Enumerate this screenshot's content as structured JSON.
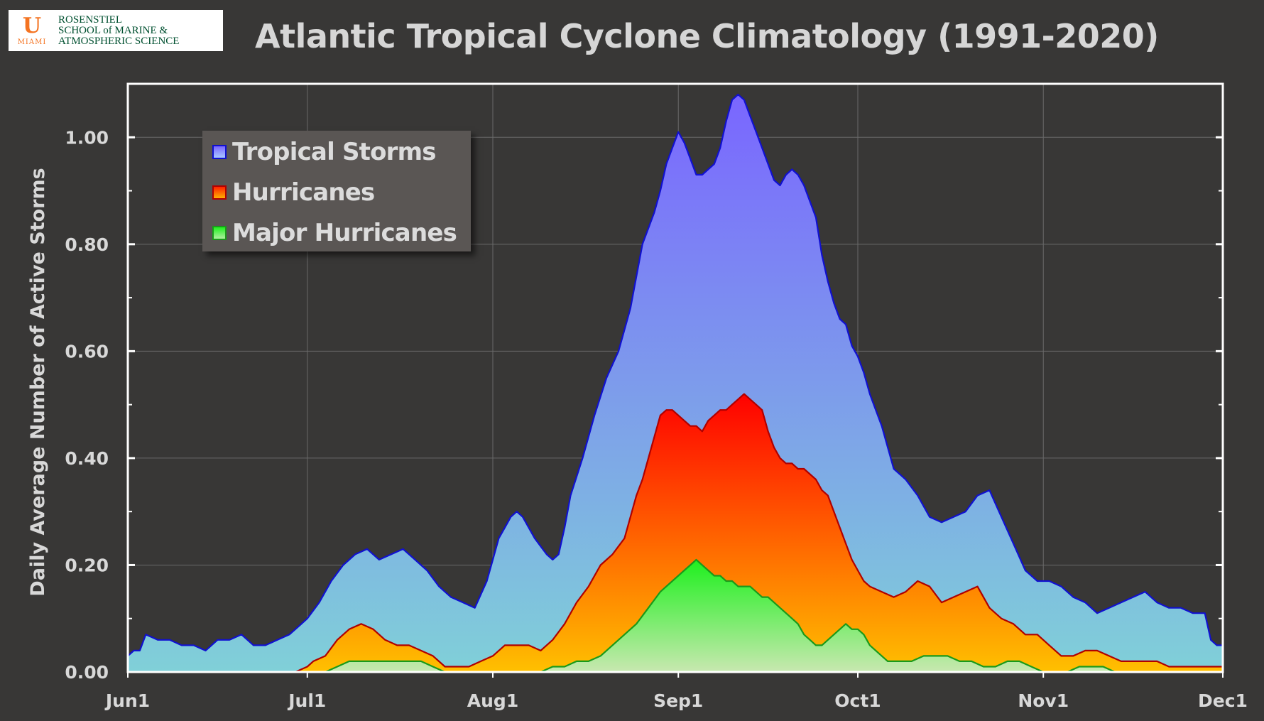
{
  "logo": {
    "mark": "U",
    "city": "MIAMI",
    "lines": [
      "ROSENSTIEL",
      "SCHOOL of MARINE &",
      "ATMOSPHERIC SCIENCE"
    ]
  },
  "title": "Atlantic Tropical Cyclone Climatology (1991-2020)",
  "colors": {
    "background": "#383736",
    "tropical_storms_top": "#7a66ff",
    "tropical_storms_bottom": "#80d0d8",
    "hurricanes_top": "#ff0000",
    "hurricanes_bottom": "#ffc000",
    "major_top": "#1ef01e",
    "major_bottom": "#c8e8b0",
    "ts_line": "#1010d0",
    "hu_line": "#b00000",
    "mh_line": "#1a9a1a",
    "axes": "#ffffff"
  },
  "chart_data": {
    "type": "area",
    "title": "Atlantic Tropical Cyclone Climatology (1991-2020)",
    "xlabel": "",
    "ylabel": "Daily Average Number of Active Storms",
    "ylim": [
      0,
      1.1
    ],
    "yticks": [
      "0.00",
      "0.20",
      "0.40",
      "0.60",
      "0.80",
      "1.00"
    ],
    "xticks": [
      "Jun1",
      "Jul1",
      "Aug1",
      "Sep1",
      "Oct1",
      "Nov1",
      "Dec1"
    ],
    "xtick_days": [
      0,
      30,
      61,
      92,
      122,
      153,
      183
    ],
    "xlim": [
      0,
      183
    ],
    "grid": true,
    "legend_position": "top-left",
    "series": [
      {
        "name": "Tropical Storms",
        "x": [
          0,
          1,
          2,
          3,
          5,
          7,
          9,
          11,
          13,
          15,
          17,
          19,
          21,
          23,
          25,
          27,
          29,
          30,
          32,
          34,
          36,
          38,
          40,
          42,
          44,
          46,
          48,
          50,
          52,
          54,
          56,
          58,
          60,
          61,
          62,
          63,
          64,
          65,
          66,
          68,
          70,
          71,
          72,
          73,
          74,
          76,
          78,
          80,
          82,
          84,
          86,
          88,
          89,
          90,
          91,
          92,
          93,
          94,
          95,
          96,
          97,
          98,
          99,
          100,
          101,
          102,
          103,
          104,
          105,
          106,
          107,
          108,
          109,
          110,
          111,
          112,
          113,
          114,
          115,
          116,
          117,
          118,
          119,
          120,
          121,
          122,
          123,
          124,
          126,
          128,
          130,
          132,
          134,
          136,
          138,
          140,
          142,
          144,
          146,
          148,
          150,
          152,
          154,
          156,
          158,
          160,
          162,
          164,
          166,
          168,
          170,
          172,
          174,
          176,
          178,
          180,
          181,
          182,
          183
        ],
        "values": [
          0.03,
          0.04,
          0.04,
          0.07,
          0.06,
          0.06,
          0.05,
          0.05,
          0.04,
          0.06,
          0.06,
          0.07,
          0.05,
          0.05,
          0.06,
          0.07,
          0.09,
          0.1,
          0.13,
          0.17,
          0.2,
          0.22,
          0.23,
          0.21,
          0.22,
          0.23,
          0.21,
          0.19,
          0.16,
          0.14,
          0.13,
          0.12,
          0.17,
          0.21,
          0.25,
          0.27,
          0.29,
          0.3,
          0.29,
          0.25,
          0.22,
          0.21,
          0.22,
          0.27,
          0.33,
          0.4,
          0.48,
          0.55,
          0.6,
          0.68,
          0.8,
          0.86,
          0.9,
          0.95,
          0.98,
          1.01,
          0.99,
          0.96,
          0.93,
          0.93,
          0.94,
          0.95,
          0.98,
          1.03,
          1.07,
          1.08,
          1.07,
          1.04,
          1.01,
          0.98,
          0.95,
          0.92,
          0.91,
          0.93,
          0.94,
          0.93,
          0.91,
          0.88,
          0.85,
          0.78,
          0.73,
          0.69,
          0.66,
          0.65,
          0.61,
          0.59,
          0.56,
          0.52,
          0.46,
          0.38,
          0.36,
          0.33,
          0.29,
          0.28,
          0.29,
          0.3,
          0.33,
          0.34,
          0.29,
          0.24,
          0.19,
          0.17,
          0.17,
          0.16,
          0.14,
          0.13,
          0.11,
          0.12,
          0.13,
          0.14,
          0.15,
          0.13,
          0.12,
          0.12,
          0.11,
          0.11,
          0.06,
          0.05,
          0.05
        ]
      },
      {
        "name": "Hurricanes",
        "x": [
          0,
          26,
          28,
          30,
          31,
          33,
          35,
          37,
          39,
          41,
          43,
          45,
          47,
          49,
          51,
          53,
          55,
          57,
          59,
          61,
          63,
          65,
          67,
          69,
          71,
          73,
          75,
          77,
          79,
          81,
          83,
          85,
          86,
          87,
          88,
          89,
          90,
          91,
          92,
          93,
          94,
          95,
          96,
          97,
          98,
          99,
          100,
          101,
          102,
          103,
          104,
          105,
          106,
          107,
          108,
          109,
          110,
          111,
          112,
          113,
          114,
          115,
          116,
          117,
          118,
          119,
          120,
          121,
          122,
          123,
          124,
          126,
          128,
          130,
          132,
          134,
          136,
          138,
          140,
          142,
          144,
          146,
          148,
          150,
          152,
          154,
          156,
          158,
          160,
          162,
          164,
          166,
          168,
          170,
          172,
          174,
          176,
          178,
          180,
          183
        ],
        "values": [
          0.0,
          0.0,
          0.0,
          0.01,
          0.02,
          0.03,
          0.06,
          0.08,
          0.09,
          0.08,
          0.06,
          0.05,
          0.05,
          0.04,
          0.03,
          0.01,
          0.01,
          0.01,
          0.02,
          0.03,
          0.05,
          0.05,
          0.05,
          0.04,
          0.06,
          0.09,
          0.13,
          0.16,
          0.2,
          0.22,
          0.25,
          0.33,
          0.36,
          0.4,
          0.44,
          0.48,
          0.49,
          0.49,
          0.48,
          0.47,
          0.46,
          0.46,
          0.45,
          0.47,
          0.48,
          0.49,
          0.49,
          0.5,
          0.51,
          0.52,
          0.51,
          0.5,
          0.49,
          0.45,
          0.42,
          0.4,
          0.39,
          0.39,
          0.38,
          0.38,
          0.37,
          0.36,
          0.34,
          0.33,
          0.3,
          0.27,
          0.24,
          0.21,
          0.19,
          0.17,
          0.16,
          0.15,
          0.14,
          0.15,
          0.17,
          0.16,
          0.13,
          0.14,
          0.15,
          0.16,
          0.12,
          0.1,
          0.09,
          0.07,
          0.07,
          0.05,
          0.03,
          0.03,
          0.04,
          0.04,
          0.03,
          0.02,
          0.02,
          0.02,
          0.02,
          0.01,
          0.01,
          0.01,
          0.01,
          0.01
        ]
      },
      {
        "name": "Major Hurricanes",
        "x": [
          0,
          33,
          35,
          37,
          39,
          41,
          43,
          45,
          47,
          49,
          51,
          53,
          55,
          57,
          59,
          61,
          63,
          65,
          67,
          69,
          71,
          73,
          75,
          77,
          79,
          81,
          83,
          85,
          87,
          89,
          91,
          92,
          93,
          94,
          95,
          96,
          97,
          98,
          99,
          100,
          101,
          102,
          103,
          104,
          105,
          106,
          107,
          108,
          109,
          110,
          111,
          112,
          113,
          114,
          115,
          116,
          117,
          118,
          119,
          120,
          121,
          122,
          123,
          124,
          125,
          127,
          129,
          131,
          133,
          135,
          137,
          139,
          141,
          143,
          145,
          147,
          149,
          151,
          153,
          155,
          157,
          159,
          161,
          163,
          165,
          167,
          169,
          171,
          173,
          175,
          177,
          179,
          181,
          183
        ],
        "values": [
          0.0,
          0.0,
          0.01,
          0.02,
          0.02,
          0.02,
          0.02,
          0.02,
          0.02,
          0.02,
          0.01,
          0.0,
          0.0,
          0.0,
          0.0,
          0.0,
          0.0,
          0.0,
          0.0,
          0.0,
          0.01,
          0.01,
          0.02,
          0.02,
          0.03,
          0.05,
          0.07,
          0.09,
          0.12,
          0.15,
          0.17,
          0.18,
          0.19,
          0.2,
          0.21,
          0.2,
          0.19,
          0.18,
          0.18,
          0.17,
          0.17,
          0.16,
          0.16,
          0.16,
          0.15,
          0.14,
          0.14,
          0.13,
          0.12,
          0.11,
          0.1,
          0.09,
          0.07,
          0.06,
          0.05,
          0.05,
          0.06,
          0.07,
          0.08,
          0.09,
          0.08,
          0.08,
          0.07,
          0.05,
          0.04,
          0.02,
          0.02,
          0.02,
          0.03,
          0.03,
          0.03,
          0.02,
          0.02,
          0.01,
          0.01,
          0.02,
          0.02,
          0.01,
          0.0,
          0.0,
          0.0,
          0.01,
          0.01,
          0.01,
          0.0,
          0.0,
          0.0,
          0.0,
          0.0,
          0.0,
          0.0,
          0.0,
          0.0,
          0.0
        ]
      }
    ]
  }
}
